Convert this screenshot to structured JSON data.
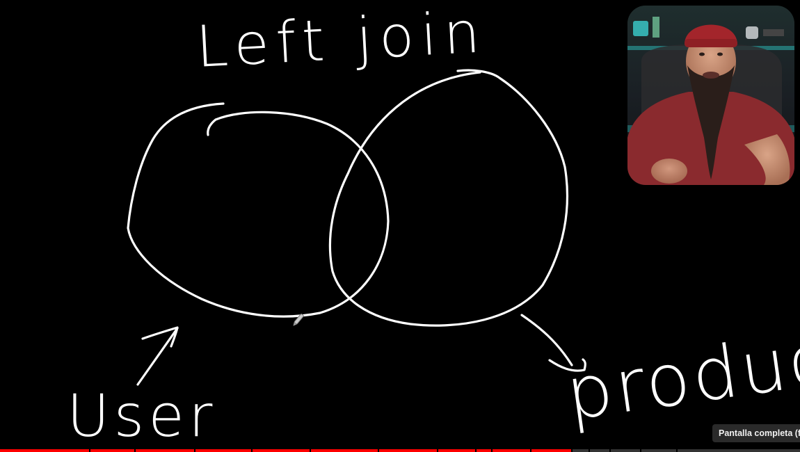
{
  "drawing": {
    "title": "Left join",
    "label_left": "User",
    "label_right": "product",
    "ink_color": "#ffffff",
    "background_color": "#000000"
  },
  "webcam": {
    "description_icon": "presenter-webcam-icon"
  },
  "player": {
    "tooltip": "Pantalla completa (f)",
    "progress_fraction": 0.715,
    "progress_color": "#ff0000",
    "chapter_fractions": [
      0.111,
      0.168,
      0.243,
      0.314,
      0.387,
      0.472,
      0.546,
      0.594,
      0.614,
      0.663,
      0.714,
      0.736,
      0.762,
      0.8,
      0.845
    ]
  }
}
